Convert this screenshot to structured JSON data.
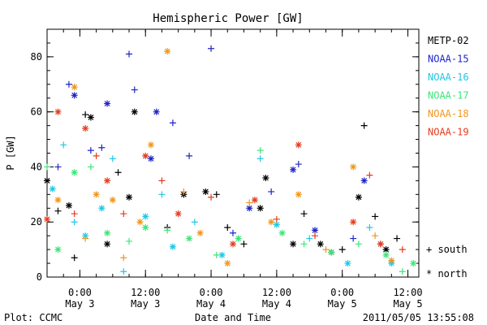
{
  "chart_data": {
    "type": "scatter",
    "title": "Hemispheric Power [GW]",
    "ylabel": "P [GW]",
    "xlabel": "Date and Time",
    "ylim": [
      0,
      90
    ],
    "y_ticks": [
      "0",
      "20",
      "40",
      "60",
      "80"
    ],
    "xlim": [
      "2011-05-02T18:00",
      "2011-05-05T14:00"
    ],
    "x_ticks": [
      {
        "time": "0:00",
        "date": "May 3",
        "x": "2011-05-03T00:00"
      },
      {
        "time": "12:00",
        "date": "May 3",
        "x": "2011-05-03T12:00"
      },
      {
        "time": "0:00",
        "date": "May 4",
        "x": "2011-05-04T00:00"
      },
      {
        "time": "12:00",
        "date": "May 4",
        "x": "2011-05-04T12:00"
      },
      {
        "time": "0:00",
        "date": "May 5",
        "x": "2011-05-05T00:00"
      },
      {
        "time": "12:00",
        "date": "May 5",
        "x": "2011-05-05T12:00"
      }
    ],
    "legend_position": "right",
    "symbol_legend": [
      {
        "symbol": "+",
        "label": "south"
      },
      {
        "symbol": "*",
        "label": "north"
      }
    ],
    "series": [
      {
        "name": "METP-02",
        "color": "#000000",
        "points": [
          {
            "x": "2011-05-02T18:00",
            "y": 35,
            "hemi": "north"
          },
          {
            "x": "2011-05-02T20:00",
            "y": 24,
            "hemi": "south"
          },
          {
            "x": "2011-05-02T22:00",
            "y": 26,
            "hemi": "north"
          },
          {
            "x": "2011-05-02T23:00",
            "y": 7,
            "hemi": "south"
          },
          {
            "x": "2011-05-03T01:00",
            "y": 59,
            "hemi": "south"
          },
          {
            "x": "2011-05-03T02:00",
            "y": 58,
            "hemi": "north"
          },
          {
            "x": "2011-05-03T05:00",
            "y": 12,
            "hemi": "north"
          },
          {
            "x": "2011-05-03T07:00",
            "y": 38,
            "hemi": "south"
          },
          {
            "x": "2011-05-03T09:00",
            "y": 29,
            "hemi": "north"
          },
          {
            "x": "2011-05-03T10:00",
            "y": 60,
            "hemi": "north"
          },
          {
            "x": "2011-05-03T16:00",
            "y": 18,
            "hemi": "south"
          },
          {
            "x": "2011-05-03T19:00",
            "y": 30,
            "hemi": "north"
          },
          {
            "x": "2011-05-03T23:00",
            "y": 31,
            "hemi": "north"
          },
          {
            "x": "2011-05-04T01:00",
            "y": 30,
            "hemi": "south"
          },
          {
            "x": "2011-05-04T03:00",
            "y": 18,
            "hemi": "south"
          },
          {
            "x": "2011-05-04T06:00",
            "y": 12,
            "hemi": "south"
          },
          {
            "x": "2011-05-04T09:00",
            "y": 25,
            "hemi": "north"
          },
          {
            "x": "2011-05-04T10:00",
            "y": 36,
            "hemi": "north"
          },
          {
            "x": "2011-05-04T15:00",
            "y": 12,
            "hemi": "north"
          },
          {
            "x": "2011-05-04T17:00",
            "y": 23,
            "hemi": "south"
          },
          {
            "x": "2011-05-04T20:00",
            "y": 12,
            "hemi": "north"
          },
          {
            "x": "2011-05-04T22:00",
            "y": 9,
            "hemi": "north"
          },
          {
            "x": "2011-05-05T00:00",
            "y": 10,
            "hemi": "south"
          },
          {
            "x": "2011-05-05T03:00",
            "y": 29,
            "hemi": "north"
          },
          {
            "x": "2011-05-05T04:00",
            "y": 55,
            "hemi": "south"
          },
          {
            "x": "2011-05-05T06:00",
            "y": 22,
            "hemi": "south"
          },
          {
            "x": "2011-05-05T08:00",
            "y": 10,
            "hemi": "north"
          },
          {
            "x": "2011-05-05T10:00",
            "y": 14,
            "hemi": "south"
          }
        ]
      },
      {
        "name": "NOAA-15",
        "color": "#1f24c8",
        "points": [
          {
            "x": "2011-05-02T20:00",
            "y": 40,
            "hemi": "south"
          },
          {
            "x": "2011-05-02T22:00",
            "y": 70,
            "hemi": "south"
          },
          {
            "x": "2011-05-02T23:00",
            "y": 66,
            "hemi": "north"
          },
          {
            "x": "2011-05-03T02:00",
            "y": 46,
            "hemi": "south"
          },
          {
            "x": "2011-05-03T04:00",
            "y": 47,
            "hemi": "south"
          },
          {
            "x": "2011-05-03T05:00",
            "y": 63,
            "hemi": "north"
          },
          {
            "x": "2011-05-03T09:00",
            "y": 81,
            "hemi": "south"
          },
          {
            "x": "2011-05-03T10:00",
            "y": 68,
            "hemi": "south"
          },
          {
            "x": "2011-05-03T13:00",
            "y": 43,
            "hemi": "north"
          },
          {
            "x": "2011-05-03T14:00",
            "y": 60,
            "hemi": "north"
          },
          {
            "x": "2011-05-03T17:00",
            "y": 56,
            "hemi": "south"
          },
          {
            "x": "2011-05-03T20:00",
            "y": 44,
            "hemi": "south"
          },
          {
            "x": "2011-05-04T00:00",
            "y": 83,
            "hemi": "south"
          },
          {
            "x": "2011-05-04T04:00",
            "y": 16,
            "hemi": "south"
          },
          {
            "x": "2011-05-04T07:00",
            "y": 25,
            "hemi": "north"
          },
          {
            "x": "2011-05-04T11:00",
            "y": 31,
            "hemi": "south"
          },
          {
            "x": "2011-05-04T15:00",
            "y": 39,
            "hemi": "north"
          },
          {
            "x": "2011-05-04T16:00",
            "y": 41,
            "hemi": "south"
          },
          {
            "x": "2011-05-04T19:00",
            "y": 17,
            "hemi": "north"
          },
          {
            "x": "2011-05-05T02:00",
            "y": 14,
            "hemi": "south"
          },
          {
            "x": "2011-05-05T04:00",
            "y": 35,
            "hemi": "north"
          },
          {
            "x": "2011-05-05T07:00",
            "y": 12,
            "hemi": "south"
          }
        ]
      },
      {
        "name": "NOAA-16",
        "color": "#1ec8e6",
        "points": [
          {
            "x": "2011-05-02T19:00",
            "y": 32,
            "hemi": "north"
          },
          {
            "x": "2011-05-02T21:00",
            "y": 48,
            "hemi": "south"
          },
          {
            "x": "2011-05-02T23:00",
            "y": 20,
            "hemi": "south"
          },
          {
            "x": "2011-05-03T01:00",
            "y": 15,
            "hemi": "north"
          },
          {
            "x": "2011-05-03T04:00",
            "y": 25,
            "hemi": "north"
          },
          {
            "x": "2011-05-03T06:00",
            "y": 43,
            "hemi": "south"
          },
          {
            "x": "2011-05-03T08:00",
            "y": 2,
            "hemi": "south"
          },
          {
            "x": "2011-05-03T12:00",
            "y": 22,
            "hemi": "north"
          },
          {
            "x": "2011-05-03T15:00",
            "y": 30,
            "hemi": "south"
          },
          {
            "x": "2011-05-03T17:00",
            "y": 11,
            "hemi": "north"
          },
          {
            "x": "2011-05-03T21:00",
            "y": 20,
            "hemi": "south"
          },
          {
            "x": "2011-05-04T02:00",
            "y": 8,
            "hemi": "north"
          },
          {
            "x": "2011-05-04T05:00",
            "y": 14,
            "hemi": "south"
          },
          {
            "x": "2011-05-04T09:00",
            "y": 43,
            "hemi": "south"
          },
          {
            "x": "2011-05-04T12:00",
            "y": 19,
            "hemi": "north"
          },
          {
            "x": "2011-05-04T18:00",
            "y": 14,
            "hemi": "south"
          },
          {
            "x": "2011-05-05T01:00",
            "y": 5,
            "hemi": "north"
          },
          {
            "x": "2011-05-05T05:00",
            "y": 18,
            "hemi": "south"
          },
          {
            "x": "2011-05-05T09:00",
            "y": 5,
            "hemi": "north"
          }
        ]
      },
      {
        "name": "NOAA-17",
        "color": "#3ce678",
        "points": [
          {
            "x": "2011-05-02T18:00",
            "y": 40,
            "hemi": "south"
          },
          {
            "x": "2011-05-02T20:00",
            "y": 10,
            "hemi": "north"
          },
          {
            "x": "2011-05-02T23:00",
            "y": 38,
            "hemi": "north"
          },
          {
            "x": "2011-05-03T02:00",
            "y": 40,
            "hemi": "south"
          },
          {
            "x": "2011-05-03T05:00",
            "y": 16,
            "hemi": "north"
          },
          {
            "x": "2011-05-03T09:00",
            "y": 13,
            "hemi": "south"
          },
          {
            "x": "2011-05-03T12:00",
            "y": 18,
            "hemi": "north"
          },
          {
            "x": "2011-05-03T16:00",
            "y": 17,
            "hemi": "south"
          },
          {
            "x": "2011-05-03T20:00",
            "y": 14,
            "hemi": "north"
          },
          {
            "x": "2011-05-04T01:00",
            "y": 8,
            "hemi": "south"
          },
          {
            "x": "2011-05-04T05:00",
            "y": 14,
            "hemi": "north"
          },
          {
            "x": "2011-05-04T09:00",
            "y": 46,
            "hemi": "south"
          },
          {
            "x": "2011-05-04T13:00",
            "y": 16,
            "hemi": "north"
          },
          {
            "x": "2011-05-04T17:00",
            "y": 12,
            "hemi": "south"
          },
          {
            "x": "2011-05-04T22:00",
            "y": 9,
            "hemi": "north"
          },
          {
            "x": "2011-05-05T03:00",
            "y": 12,
            "hemi": "south"
          },
          {
            "x": "2011-05-05T08:00",
            "y": 8,
            "hemi": "north"
          },
          {
            "x": "2011-05-05T11:00",
            "y": 2,
            "hemi": "south"
          },
          {
            "x": "2011-05-05T13:00",
            "y": 5,
            "hemi": "north"
          }
        ]
      },
      {
        "name": "NOAA-18",
        "color": "#f0961e",
        "points": [
          {
            "x": "2011-05-02T20:00",
            "y": 28,
            "hemi": "north"
          },
          {
            "x": "2011-05-02T23:00",
            "y": 69,
            "hemi": "north"
          },
          {
            "x": "2011-05-03T01:00",
            "y": 14,
            "hemi": "south"
          },
          {
            "x": "2011-05-03T03:00",
            "y": 30,
            "hemi": "north"
          },
          {
            "x": "2011-05-03T06:00",
            "y": 28,
            "hemi": "north"
          },
          {
            "x": "2011-05-03T08:00",
            "y": 7,
            "hemi": "south"
          },
          {
            "x": "2011-05-03T11:00",
            "y": 20,
            "hemi": "north"
          },
          {
            "x": "2011-05-03T13:00",
            "y": 48,
            "hemi": "north"
          },
          {
            "x": "2011-05-03T16:00",
            "y": 82,
            "hemi": "north"
          },
          {
            "x": "2011-05-03T19:00",
            "y": 31,
            "hemi": "south"
          },
          {
            "x": "2011-05-03T22:00",
            "y": 16,
            "hemi": "north"
          },
          {
            "x": "2011-05-04T03:00",
            "y": 5,
            "hemi": "north"
          },
          {
            "x": "2011-05-04T07:00",
            "y": 27,
            "hemi": "south"
          },
          {
            "x": "2011-05-04T11:00",
            "y": 20,
            "hemi": "north"
          },
          {
            "x": "2011-05-04T16:00",
            "y": 30,
            "hemi": "north"
          },
          {
            "x": "2011-05-04T21:00",
            "y": 10,
            "hemi": "south"
          },
          {
            "x": "2011-05-05T02:00",
            "y": 40,
            "hemi": "north"
          },
          {
            "x": "2011-05-05T06:00",
            "y": 15,
            "hemi": "south"
          },
          {
            "x": "2011-05-05T09:00",
            "y": 6,
            "hemi": "north"
          }
        ]
      },
      {
        "name": "NOAA-19",
        "color": "#e63c1e",
        "points": [
          {
            "x": "2011-05-02T18:00",
            "y": 21,
            "hemi": "north"
          },
          {
            "x": "2011-05-02T20:00",
            "y": 60,
            "hemi": "north"
          },
          {
            "x": "2011-05-02T23:00",
            "y": 23,
            "hemi": "south"
          },
          {
            "x": "2011-05-03T01:00",
            "y": 54,
            "hemi": "north"
          },
          {
            "x": "2011-05-03T03:00",
            "y": 44,
            "hemi": "south"
          },
          {
            "x": "2011-05-03T05:00",
            "y": 35,
            "hemi": "north"
          },
          {
            "x": "2011-05-03T08:00",
            "y": 23,
            "hemi": "south"
          },
          {
            "x": "2011-05-03T12:00",
            "y": 44,
            "hemi": "north"
          },
          {
            "x": "2011-05-03T15:00",
            "y": 35,
            "hemi": "south"
          },
          {
            "x": "2011-05-03T18:00",
            "y": 23,
            "hemi": "north"
          },
          {
            "x": "2011-05-04T00:00",
            "y": 29,
            "hemi": "south"
          },
          {
            "x": "2011-05-04T04:00",
            "y": 12,
            "hemi": "north"
          },
          {
            "x": "2011-05-04T08:00",
            "y": 28,
            "hemi": "north"
          },
          {
            "x": "2011-05-04T12:00",
            "y": 21,
            "hemi": "south"
          },
          {
            "x": "2011-05-04T16:00",
            "y": 48,
            "hemi": "north"
          },
          {
            "x": "2011-05-04T19:00",
            "y": 15,
            "hemi": "south"
          },
          {
            "x": "2011-05-05T02:00",
            "y": 20,
            "hemi": "north"
          },
          {
            "x": "2011-05-05T05:00",
            "y": 37,
            "hemi": "south"
          },
          {
            "x": "2011-05-05T07:00",
            "y": 12,
            "hemi": "north"
          },
          {
            "x": "2011-05-05T11:00",
            "y": 10,
            "hemi": "south"
          }
        ]
      }
    ]
  },
  "footer": {
    "plot_credit": "Plot: CCMC",
    "xlabel": "Date and Time",
    "timestamp": "2011/05/05 13:55:08"
  }
}
